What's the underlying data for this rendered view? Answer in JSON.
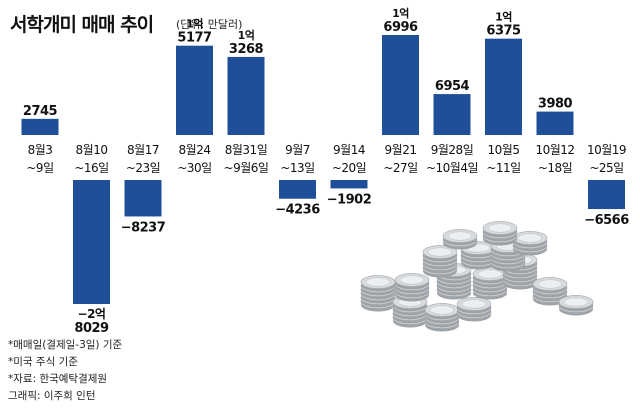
{
  "title": "서학개미 매매 추이",
  "unit": "(단위: 만달러)",
  "footnotes": [
    "*매매일(결제일-3일) 기준",
    "*미국 주식 기준",
    "*자료: 한국예탁결제원",
    "그래픽: 이주희 인턴"
  ],
  "colors": {
    "bar": "#1f4f99",
    "text": "#111111"
  },
  "illustration": "coins-stack-icon",
  "chart_data": {
    "type": "bar",
    "categories": [
      "8월3 ~9일",
      "8월10 ~16일",
      "8월17 ~23일",
      "8월24 ~30일",
      "8월31일 ~9월6일",
      "9월7 ~13일",
      "9월14 ~20일",
      "9월21 ~27일",
      "9월28일 ~10월4일",
      "10월5 ~11일",
      "10월12 ~18일",
      "10월19 ~25일"
    ],
    "category_lines": [
      [
        "8월3",
        "~9일"
      ],
      [
        "8월10",
        "~16일"
      ],
      [
        "8월17",
        "~23일"
      ],
      [
        "8월24",
        "~30일"
      ],
      [
        "8월31일",
        "~9월6일"
      ],
      [
        "9월7",
        "~13일"
      ],
      [
        "9월14",
        "~20일"
      ],
      [
        "9월21",
        "~27일"
      ],
      [
        "9월28일",
        "~10월4일"
      ],
      [
        "10월5",
        "~11일"
      ],
      [
        "10월12",
        "~18일"
      ],
      [
        "10월19",
        "~25일"
      ]
    ],
    "values": [
      2745,
      -28029,
      -8237,
      15177,
      13268,
      -4236,
      -1902,
      16996,
      6954,
      16375,
      3980,
      -6566
    ],
    "labels": [
      [
        "2745"
      ],
      [
        "−2억",
        "8029"
      ],
      [
        "−8237"
      ],
      [
        "1억",
        "5177"
      ],
      [
        "1억",
        "3268"
      ],
      [
        "−4236"
      ],
      [
        "−1902"
      ],
      [
        "1억",
        "6996"
      ],
      [
        "6954"
      ],
      [
        "1억",
        "6375"
      ],
      [
        "3980"
      ],
      [
        "−6566"
      ]
    ],
    "ylim": [
      -30000,
      18000
    ],
    "xlabel": "",
    "ylabel": "",
    "grid": false,
    "legend": "none"
  }
}
